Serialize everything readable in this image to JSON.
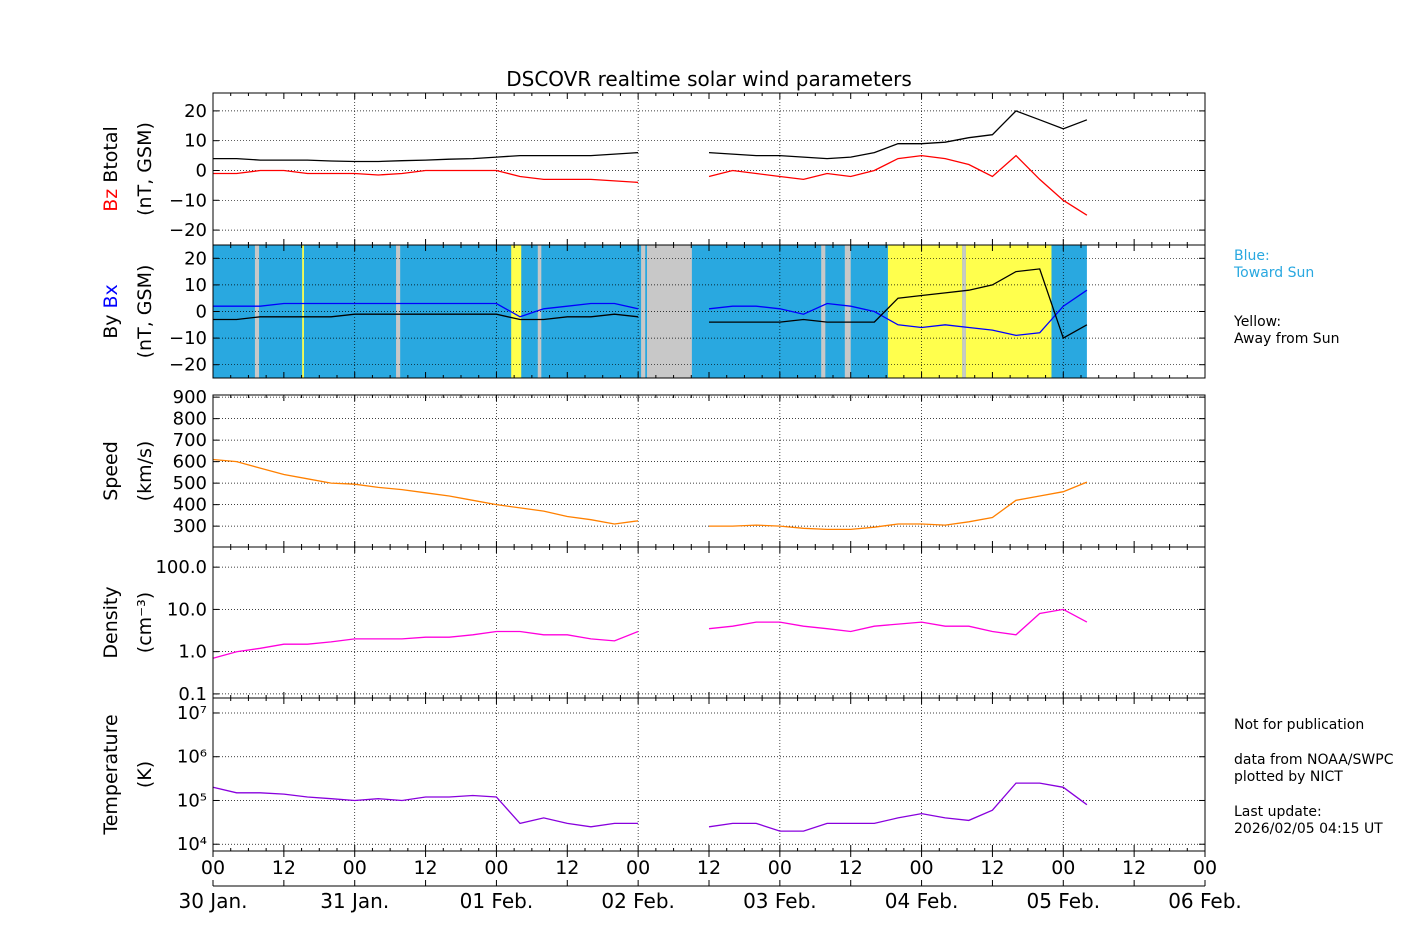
{
  "chart_data": {
    "type": "line",
    "title": "DSCOVR realtime solar wind parameters",
    "x_unit": "hours since 30 Jan. 00 UT",
    "xlim": [
      0,
      168
    ],
    "x_tick_labels": [
      "00",
      "12",
      "00",
      "12",
      "00",
      "12",
      "00",
      "12",
      "00",
      "12",
      "00",
      "12",
      "00",
      "12",
      "00"
    ],
    "date_labels": [
      "30 Jan.",
      "31 Jan.",
      "01 Feb.",
      "02 Feb.",
      "03 Feb.",
      "04 Feb.",
      "05 Feb.",
      "06 Feb."
    ],
    "x": [
      0,
      4,
      8,
      12,
      16,
      20,
      24,
      28,
      32,
      36,
      40,
      44,
      48,
      52,
      56,
      60,
      64,
      68,
      72,
      76,
      80,
      84,
      88,
      92,
      96,
      100,
      104,
      108,
      112,
      116,
      120,
      124,
      128,
      132,
      136,
      140,
      144,
      148
    ],
    "panels": [
      {
        "ylabel_parts": [
          "Bz",
          "Btotal"
        ],
        "ylabel_unit": "(nT, GSM)",
        "scale": "linear",
        "ylim": [
          -25,
          26
        ],
        "ticks": [
          {
            "v": 20,
            "label": "20"
          },
          {
            "v": 10,
            "label": "10"
          },
          {
            "v": 0,
            "label": "0"
          },
          {
            "v": -10,
            "label": "−10"
          },
          {
            "v": -20,
            "label": "−20"
          }
        ],
        "series": [
          {
            "name": "Bz",
            "color": "#ff0000",
            "values": [
              -1,
              -1,
              0,
              0,
              -1,
              -1,
              -1,
              -1.5,
              -1,
              0,
              0,
              0,
              0,
              -2,
              -3,
              -3,
              -3,
              -3.5,
              -4,
              null,
              null,
              -2,
              0,
              -1,
              -2,
              -3,
              -1,
              -2,
              0,
              4,
              5,
              4,
              2,
              -2,
              5,
              -3,
              -10,
              -15
            ]
          },
          {
            "name": "Btotal",
            "color": "#000000",
            "values": [
              4,
              4,
              3.5,
              3.5,
              3.5,
              3.2,
              3,
              3,
              3.3,
              3.5,
              3.8,
              4,
              4.5,
              5,
              5,
              5,
              5,
              5.5,
              6,
              null,
              null,
              6,
              5.5,
              5,
              5,
              4.5,
              4,
              4.5,
              6,
              9,
              9,
              9.5,
              11,
              12,
              20,
              17,
              14,
              17
            ]
          }
        ]
      },
      {
        "ylabel_parts": [
          "By",
          "Bx"
        ],
        "ylabel_unit": "(nT, GSM)",
        "scale": "linear",
        "ylim": [
          -25,
          25
        ],
        "ticks": [
          {
            "v": 20,
            "label": "20"
          },
          {
            "v": 10,
            "label": "10"
          },
          {
            "v": 0,
            "label": "0"
          },
          {
            "v": -10,
            "label": "−10"
          },
          {
            "v": -20,
            "label": "−20"
          }
        ],
        "sectors": [
          {
            "start": 0,
            "end": 148,
            "type": "toward"
          },
          {
            "start": 7.1,
            "end": 7.8,
            "type": "none"
          },
          {
            "start": 15.1,
            "end": 15.4,
            "type": "away"
          },
          {
            "start": 31,
            "end": 31.7,
            "type": "none"
          },
          {
            "start": 50.5,
            "end": 52.2,
            "type": "away"
          },
          {
            "start": 55,
            "end": 55.6,
            "type": "none"
          },
          {
            "start": 72.5,
            "end": 73.2,
            "type": "none"
          },
          {
            "start": 73.5,
            "end": 81.1,
            "type": "none"
          },
          {
            "start": 103,
            "end": 103.7,
            "type": "none"
          },
          {
            "start": 107,
            "end": 108,
            "type": "none"
          },
          {
            "start": 114.3,
            "end": 126.9,
            "type": "away"
          },
          {
            "start": 126.9,
            "end": 127.5,
            "type": "none"
          },
          {
            "start": 127.5,
            "end": 142,
            "type": "away"
          }
        ],
        "sector_colors": {
          "toward": "#29a8e0",
          "away": "#ffff4d",
          "none": "#c8c8c8"
        },
        "series": [
          {
            "name": "Bx",
            "color": "#0000ff",
            "values": [
              2,
              2,
              2,
              3,
              3,
              3,
              3,
              3,
              3,
              3,
              3,
              3,
              3,
              -2,
              1,
              2,
              3,
              3,
              1,
              null,
              null,
              1,
              2,
              2,
              1,
              -1,
              3,
              2,
              0,
              -5,
              -6,
              -5,
              -6,
              -7,
              -9,
              -8,
              2,
              8
            ]
          },
          {
            "name": "By",
            "color": "#000000",
            "values": [
              -3,
              -3,
              -2,
              -2,
              -2,
              -2,
              -1,
              -1,
              -1,
              -1,
              -1,
              -1,
              -1,
              -3,
              -3,
              -2,
              -2,
              -1,
              -2,
              null,
              null,
              -4,
              -4,
              -4,
              -4,
              -3,
              -4,
              -4,
              -4,
              5,
              6,
              7,
              8,
              10,
              15,
              16,
              -10,
              -5
            ]
          }
        ]
      },
      {
        "ylabel_parts": [
          "Speed"
        ],
        "ylabel_unit": "(km/s)",
        "scale": "linear",
        "ylim": [
          203,
          910
        ],
        "ticks": [
          {
            "v": 900,
            "label": "900"
          },
          {
            "v": 800,
            "label": "800"
          },
          {
            "v": 700,
            "label": "700"
          },
          {
            "v": 600,
            "label": "600"
          },
          {
            "v": 500,
            "label": "500"
          },
          {
            "v": 400,
            "label": "400"
          },
          {
            "v": 300,
            "label": "300"
          }
        ],
        "series": [
          {
            "name": "Speed",
            "color": "#ff8000",
            "values": [
              610,
              600,
              570,
              540,
              520,
              500,
              495,
              480,
              470,
              455,
              440,
              420,
              400,
              385,
              370,
              345,
              330,
              310,
              325,
              null,
              null,
              300,
              300,
              305,
              300,
              290,
              285,
              285,
              295,
              310,
              310,
              305,
              320,
              340,
              420,
              440,
              460,
              505
            ]
          }
        ]
      },
      {
        "ylabel_parts": [
          "Density"
        ],
        "ylabel_unit": "(cm⁻³)",
        "scale": "log",
        "ylim": [
          0.08,
          300
        ],
        "ticks": [
          {
            "v": 100,
            "label": "100.0"
          },
          {
            "v": 10,
            "label": "10.0"
          },
          {
            "v": 1,
            "label": "1.0"
          },
          {
            "v": 0.1,
            "label": "0.1"
          }
        ],
        "series": [
          {
            "name": "Density",
            "color": "#ff00dd",
            "values": [
              0.7,
              1.0,
              1.2,
              1.5,
              1.5,
              1.7,
              2,
              2,
              2,
              2.2,
              2.2,
              2.5,
              3,
              3,
              2.5,
              2.5,
              2,
              1.8,
              3,
              null,
              null,
              3.5,
              4,
              5,
              5,
              4,
              3.5,
              3,
              4,
              4.5,
              5,
              4,
              4,
              3,
              2.5,
              8,
              10,
              5
            ]
          }
        ]
      },
      {
        "ylabel_parts": [
          "Temperature"
        ],
        "ylabel_unit": "(K)",
        "scale": "log",
        "ylim": [
          7000,
          22000000
        ],
        "ticks": [
          {
            "v": 10000000,
            "label": "10⁷"
          },
          {
            "v": 1000000,
            "label": "10⁶"
          },
          {
            "v": 100000,
            "label": "10⁵"
          },
          {
            "v": 10000,
            "label": "10⁴"
          }
        ],
        "series": [
          {
            "name": "Temperature",
            "color": "#8800dd",
            "values": [
              200000,
              150000,
              150000,
              140000,
              120000,
              110000,
              100000,
              110000,
              100000,
              120000,
              120000,
              130000,
              120000,
              30000,
              40000,
              30000,
              25000,
              30000,
              30000,
              null,
              null,
              25000,
              30000,
              30000,
              20000,
              20000,
              30000,
              30000,
              30000,
              40000,
              50000,
              40000,
              35000,
              60000,
              250000,
              250000,
              200000,
              80000
            ]
          }
        ]
      }
    ]
  },
  "legend": {
    "blue_label": "Blue:",
    "blue_desc": "Toward Sun",
    "yellow_label": "Yellow:",
    "yellow_desc": "Away from Sun"
  },
  "notes": {
    "publication": "Not for publication",
    "source": "data from NOAA/SWPC",
    "plotted": "plotted by NICT",
    "update_label": "Last update:",
    "update_value": "2026/02/05 04:15 UT"
  }
}
